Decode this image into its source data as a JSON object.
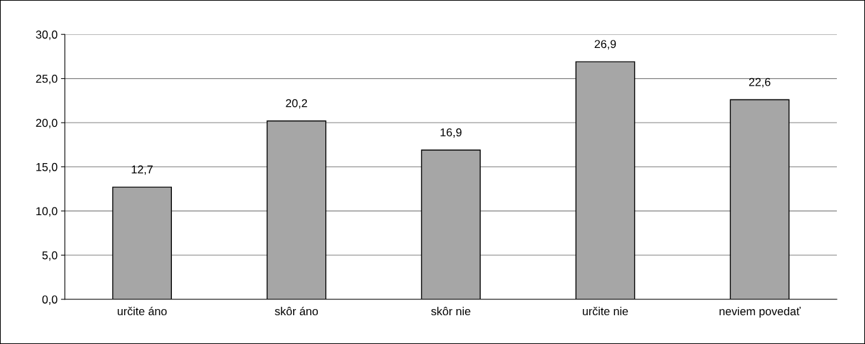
{
  "chart_data": {
    "type": "bar",
    "categories": [
      "určite áno",
      "skôr áno",
      "skôr nie",
      "určite nie",
      "neviem povedať"
    ],
    "values": [
      12.7,
      20.2,
      16.9,
      26.9,
      22.6
    ],
    "value_labels": [
      "12,7",
      "20,2",
      "16,9",
      "26,9",
      "22,6"
    ],
    "color": "#a6a6a6",
    "ylim": [
      0,
      30
    ],
    "yticks": [
      {
        "value": 0,
        "label": "0,0"
      },
      {
        "value": 5,
        "label": "5,0"
      },
      {
        "value": 10,
        "label": "10,0"
      },
      {
        "value": 15,
        "label": "15,0"
      },
      {
        "value": 20,
        "label": "20,0"
      },
      {
        "value": 25,
        "label": "25,0"
      },
      {
        "value": 30,
        "label": "30,0"
      }
    ],
    "grid": "y",
    "legend": false
  }
}
